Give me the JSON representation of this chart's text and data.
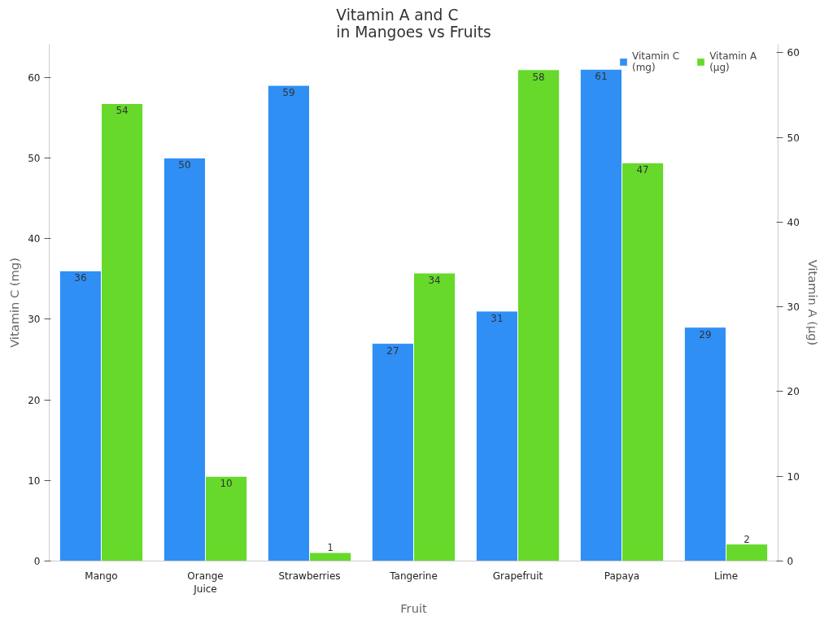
{
  "chart_data": {
    "type": "bar",
    "title": "Vitamin A and C\nin Mangoes vs Fruits",
    "xlabel": "Fruit",
    "ylabel": "Vitamin C (mg)",
    "y2label": "Vitamin A (μg)",
    "categories": [
      "Mango",
      "Orange\nJuice",
      "Strawberries",
      "Tangerine",
      "Grapefruit",
      "Papaya",
      "Lime"
    ],
    "series": [
      {
        "name": "Vitamin C\n(mg)",
        "color": "#2f8ff5",
        "values": [
          36,
          50,
          59,
          27,
          31,
          61,
          29
        ]
      },
      {
        "name": "Vitamin A\n(μg)",
        "color": "#66d92a",
        "axis": "y2",
        "values": [
          54,
          10,
          1,
          34,
          58,
          47,
          2
        ]
      }
    ],
    "ylim": [
      0,
      64.1
    ],
    "yticks": [
      0,
      10,
      20,
      30,
      40,
      50,
      60
    ],
    "y2lim": [
      0,
      61
    ],
    "y2ticks": [
      0,
      10,
      20,
      30,
      40,
      50,
      60
    ],
    "data_labels": true,
    "grid": false,
    "legend": "top right"
  }
}
